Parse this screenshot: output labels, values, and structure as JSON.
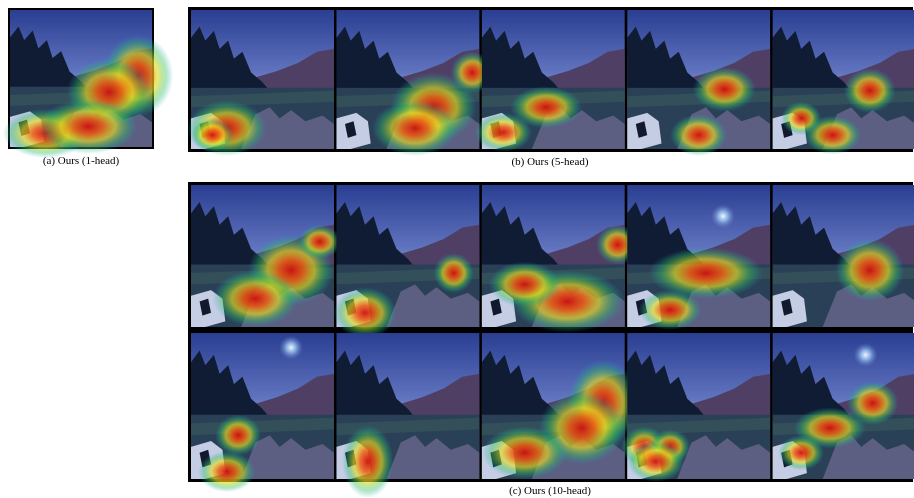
{
  "panels": [
    {
      "caption": "(a) Ours (1-head)"
    },
    {
      "caption": "(b) Ours (5-head)"
    },
    {
      "caption": "(c) Ours (10-head)"
    }
  ]
}
